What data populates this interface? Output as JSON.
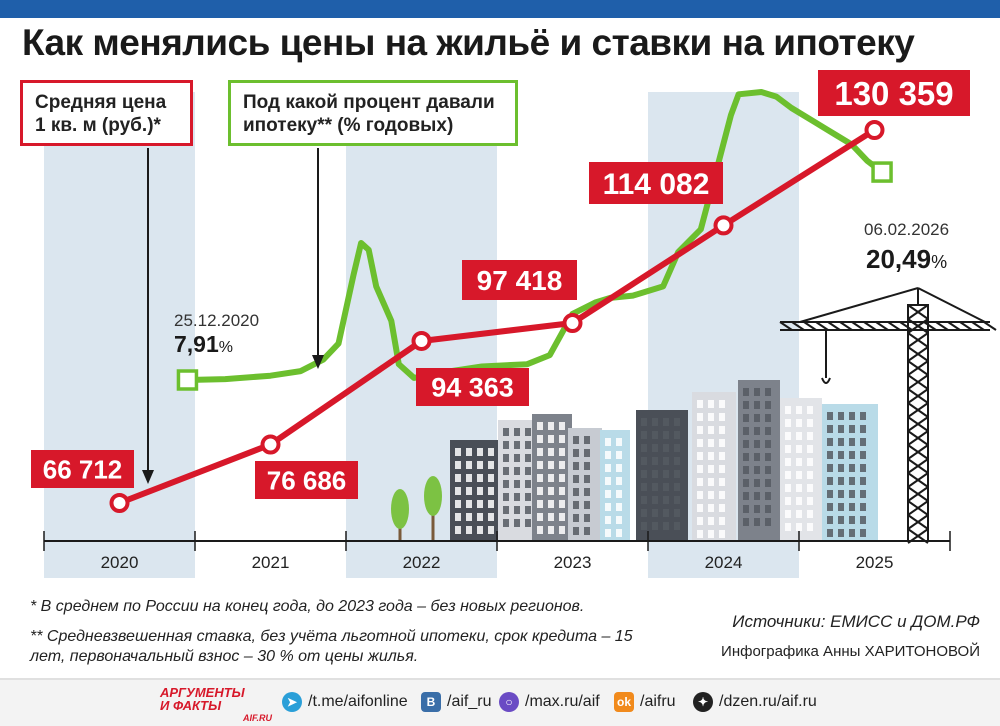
{
  "title": "Как менялись цены на жильё и ставки на ипотеку",
  "legend": {
    "price_line1": "Средняя цена",
    "price_line2": "1 кв. м (руб.)*",
    "rate_line1": "Под какой процент давали",
    "rate_line2": "ипотеку** (% годовых)"
  },
  "colors": {
    "price": "#d7182a",
    "rate": "#6cbf2e",
    "band": "#dbe6ef",
    "topbar": "#1f5faa"
  },
  "chart_data": {
    "type": "line",
    "categories": [
      "2020",
      "2021",
      "2022",
      "2023",
      "2024",
      "2025"
    ],
    "series": [
      {
        "name": "Средняя цена 1 кв. м (руб.)*",
        "values": [
          66712,
          76686,
          94363,
          97418,
          114082,
          130359
        ],
        "labels": [
          "66 712",
          "76 686",
          "94 363",
          "97 418",
          "114 082",
          "130 359"
        ]
      },
      {
        "name": "Под какой процент давали ипотеку** (% годовых)",
        "x": [
          2020.95,
          2021.2,
          2021.5,
          2021.7,
          2021.85,
          2021.95,
          2022.05,
          2022.1,
          2022.15,
          2022.2,
          2022.3,
          2022.35,
          2022.45,
          2022.6,
          2022.9,
          2023.2,
          2023.35,
          2023.5,
          2023.65,
          2023.75,
          2023.9,
          2024.1,
          2024.2,
          2024.35,
          2024.45,
          2024.55,
          2024.6,
          2024.75,
          2024.85,
          2024.95,
          2025.1,
          2025.25,
          2025.35,
          2025.45,
          2025.55
        ],
        "values": [
          7.91,
          7.95,
          8.1,
          8.3,
          8.8,
          9.5,
          12.5,
          13.9,
          13.6,
          12.0,
          10.5,
          8.6,
          8.0,
          8.2,
          8.5,
          8.6,
          9.0,
          10.8,
          11.3,
          11.5,
          11.6,
          12.0,
          13.5,
          14.5,
          17.0,
          19.5,
          20.4,
          20.5,
          20.3,
          19.8,
          19.2,
          18.6,
          18.2,
          17.5,
          17.0
        ]
      }
    ],
    "annotations": {
      "rate_start_date": "25.12.2020",
      "rate_start_value": "7,91",
      "rate_end_date": "06.02.2026",
      "rate_end_value": "20,49",
      "percent_sign": "%"
    }
  },
  "footnotes": {
    "note1": "* В среднем по России на конец года, до 2023 года – без новых регионов.",
    "note2": "** Средневзвешенная ставка, без учёта льготной ипотеки, срок кредита – 15 лет, первоначальный взнос – 30 % от цены жилья."
  },
  "sources": "Источники: ЕМИСС и ДОМ.РФ",
  "credit": "Инфографика Анны ХАРИТОНОВОЙ",
  "footer": {
    "logo_line1": "АРГУМЕНТЫ",
    "logo_line2": "И ФАКТЫ",
    "logo_site": "AIF.RU",
    "links": [
      "/t.me/aifonline",
      "/aif_ru",
      "/max.ru/aif",
      "/aifru",
      "/dzen.ru/aif.ru"
    ]
  }
}
